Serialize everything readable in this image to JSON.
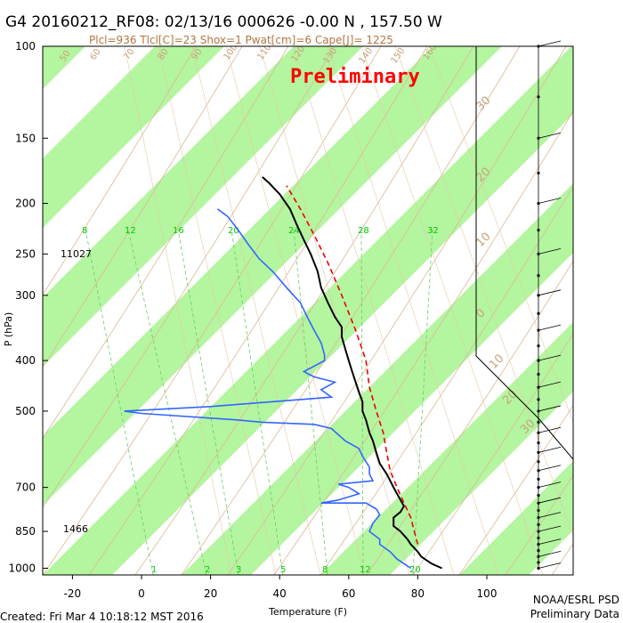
{
  "header": {
    "title": "G4 20160212_RF08: 02/13/16 000626  -0.00 N , 157.50 W",
    "subtitle": "Plcl=936 Tlcl[C]=23 Shox=1 Pwat[cm]=6 Cape[J]= 1225"
  },
  "watermark": "Preliminary",
  "footer": {
    "created": "Created: Fri Mar  4 10:18:12 MST 2016",
    "credit_line1": "NOAA/ESRL PSD",
    "credit_line2": "Preliminary Data"
  },
  "annotations": {
    "height_250": "11027",
    "height_850": "1466"
  },
  "chart_data": {
    "type": "line",
    "subtype": "skew-t log-p",
    "xlabel": "Temperature (F)",
    "ylabel": "P (hPa)",
    "x_ticks": [
      "-20",
      "0",
      "20",
      "40",
      "60",
      "80",
      "100"
    ],
    "y_ticks": [
      "100",
      "150",
      "200",
      "250",
      "300",
      "400",
      "500",
      "700",
      "850",
      "1000"
    ],
    "mixing_ratio_labels": [
      "8",
      "12",
      "16",
      "20",
      "24",
      "28",
      "32"
    ],
    "mixing_ratio_bottom_labels": [
      "1",
      "2",
      "3",
      "5",
      "8",
      "12",
      "20"
    ],
    "dry_adiabat_labels": [
      "50",
      "60",
      "70",
      "80",
      "90",
      "100",
      "110",
      "120",
      "130",
      "140",
      "150",
      "160"
    ],
    "skew_isotherm_labels": [
      "30",
      "20",
      "10",
      "0",
      "-10",
      "-20",
      "-30",
      "-40",
      "-50",
      "-10",
      "-20",
      "-10",
      "0",
      "10",
      "20",
      "30"
    ],
    "series": [
      {
        "name": "temperature",
        "color": "#000000",
        "points": [
          [
            87,
            1000
          ],
          [
            84,
            980
          ],
          [
            81,
            950
          ],
          [
            80,
            930
          ],
          [
            78,
            900
          ],
          [
            77,
            880
          ],
          [
            75,
            850
          ],
          [
            73,
            830
          ],
          [
            73,
            800
          ],
          [
            75,
            780
          ],
          [
            76,
            760
          ],
          [
            75,
            740
          ],
          [
            74,
            720
          ],
          [
            73,
            700
          ],
          [
            72,
            680
          ],
          [
            71,
            660
          ],
          [
            69,
            630
          ],
          [
            68,
            600
          ],
          [
            67,
            570
          ],
          [
            66,
            550
          ],
          [
            65,
            520
          ],
          [
            64,
            500
          ],
          [
            64,
            480
          ],
          [
            63,
            460
          ],
          [
            62,
            440
          ],
          [
            61,
            420
          ],
          [
            60,
            400
          ],
          [
            59,
            380
          ],
          [
            58,
            360
          ],
          [
            58,
            345
          ],
          [
            56,
            330
          ],
          [
            54,
            310
          ],
          [
            52,
            290
          ],
          [
            51,
            270
          ],
          [
            49,
            250
          ],
          [
            47,
            235
          ],
          [
            45,
            220
          ],
          [
            43,
            205
          ],
          [
            40,
            192
          ],
          [
            37,
            183
          ],
          [
            35,
            178
          ]
        ]
      },
      {
        "name": "dewpoint",
        "color": "#3366ff",
        "points": [
          [
            78,
            1000
          ],
          [
            76,
            980
          ],
          [
            74,
            960
          ],
          [
            72,
            930
          ],
          [
            69,
            900
          ],
          [
            69,
            880
          ],
          [
            66,
            850
          ],
          [
            67,
            820
          ],
          [
            69,
            790
          ],
          [
            68,
            770
          ],
          [
            65,
            750
          ],
          [
            52,
            750
          ],
          [
            57,
            740
          ],
          [
            63,
            720
          ],
          [
            60,
            700
          ],
          [
            57,
            690
          ],
          [
            67,
            680
          ],
          [
            66,
            660
          ],
          [
            66,
            640
          ],
          [
            64,
            610
          ],
          [
            63,
            590
          ],
          [
            59,
            570
          ],
          [
            57,
            555
          ],
          [
            55,
            540
          ],
          [
            50,
            530
          ],
          [
            35,
            525
          ],
          [
            28,
            520
          ],
          [
            0,
            505
          ],
          [
            -5,
            500
          ],
          [
            20,
            490
          ],
          [
            55,
            470
          ],
          [
            52,
            455
          ],
          [
            56,
            440
          ],
          [
            50,
            430
          ],
          [
            47,
            420
          ],
          [
            50,
            410
          ],
          [
            53,
            400
          ],
          [
            53,
            390
          ],
          [
            52,
            370
          ],
          [
            50,
            350
          ],
          [
            48,
            330
          ],
          [
            46,
            310
          ],
          [
            42,
            290
          ],
          [
            38,
            270
          ],
          [
            34,
            255
          ],
          [
            31,
            240
          ],
          [
            28,
            225
          ],
          [
            25,
            212
          ],
          [
            22,
            205
          ]
        ]
      },
      {
        "name": "parcel",
        "color": "#ee0000",
        "points": [
          [
            80,
            900
          ],
          [
            79,
            850
          ],
          [
            78,
            800
          ],
          [
            76,
            750
          ],
          [
            74,
            700
          ],
          [
            72,
            650
          ],
          [
            71,
            600
          ],
          [
            70,
            550
          ],
          [
            68,
            500
          ],
          [
            66,
            450
          ],
          [
            65,
            400
          ],
          [
            62,
            350
          ],
          [
            58,
            300
          ],
          [
            54,
            260
          ],
          [
            50,
            230
          ],
          [
            46,
            205
          ],
          [
            42,
            185
          ]
        ]
      }
    ],
    "xlim": [
      -27,
      115
    ],
    "ylim": [
      1030,
      100
    ],
    "y_scale": "log",
    "grid": true
  },
  "wind_profile": {
    "pressures": [
      1000,
      975,
      950,
      925,
      900,
      875,
      850,
      825,
      800,
      775,
      750,
      725,
      700,
      675,
      650,
      625,
      600,
      575,
      550,
      525,
      500,
      475,
      450,
      425,
      400,
      375,
      350,
      325,
      300,
      275,
      250,
      225,
      200,
      175,
      150,
      125,
      100
    ]
  }
}
